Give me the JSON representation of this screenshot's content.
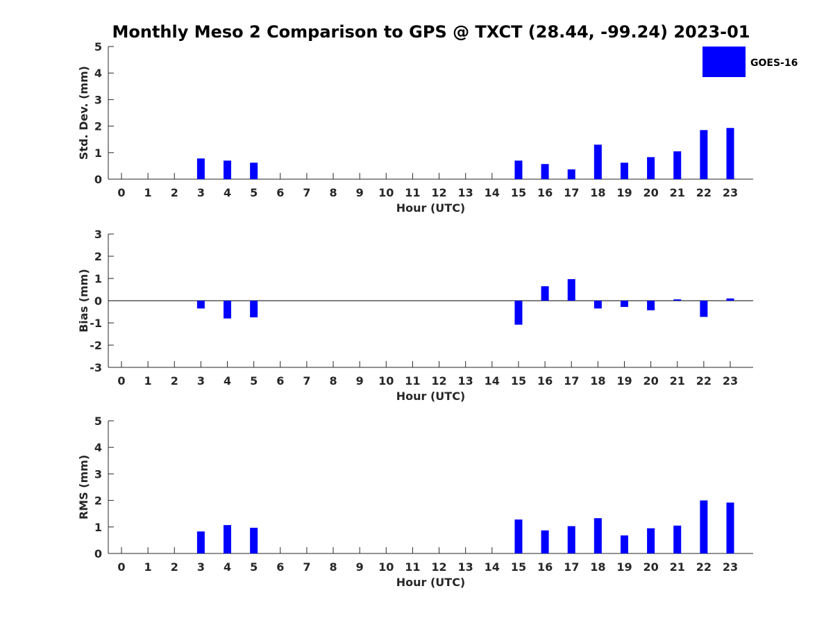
{
  "figure": {
    "title": "Monthly Meso 2 Comparison to GPS @ TXCT (28.44, -99.24) 2023-01",
    "legend_label": "GOES-16",
    "bar_color": "#0000ff"
  },
  "chart_data": [
    {
      "type": "bar",
      "ylabel": "Std. Dev. (mm)",
      "xlabel": "Hour (UTC)",
      "x": [
        0,
        1,
        2,
        3,
        4,
        5,
        6,
        7,
        8,
        9,
        10,
        11,
        12,
        13,
        14,
        15,
        16,
        17,
        18,
        19,
        20,
        21,
        22,
        23
      ],
      "x_tick_labels": [
        "0",
        "1",
        "2",
        "3",
        "4",
        "5",
        "6",
        "7",
        "8",
        "9",
        "10",
        "11",
        "12",
        "13",
        "14",
        "15",
        "16",
        "17",
        "18",
        "19",
        "20",
        "21",
        "22",
        "23"
      ],
      "ylim": [
        0,
        5
      ],
      "y_ticks": [
        0,
        1,
        2,
        3,
        4,
        5
      ],
      "y_tick_labels": [
        "0",
        "1",
        "2",
        "3",
        "4",
        "5"
      ],
      "values": [
        null,
        null,
        null,
        0.78,
        0.7,
        0.62,
        null,
        null,
        null,
        null,
        null,
        null,
        null,
        null,
        null,
        0.7,
        0.57,
        0.37,
        1.3,
        0.62,
        0.83,
        1.05,
        1.85,
        1.93
      ]
    },
    {
      "type": "bar",
      "ylabel": "Bias (mm)",
      "xlabel": "Hour (UTC)",
      "x": [
        0,
        1,
        2,
        3,
        4,
        5,
        6,
        7,
        8,
        9,
        10,
        11,
        12,
        13,
        14,
        15,
        16,
        17,
        18,
        19,
        20,
        21,
        22,
        23
      ],
      "x_tick_labels": [
        "0",
        "1",
        "2",
        "3",
        "4",
        "5",
        "6",
        "7",
        "8",
        "9",
        "10",
        "11",
        "12",
        "13",
        "14",
        "15",
        "16",
        "17",
        "18",
        "19",
        "20",
        "21",
        "22",
        "23"
      ],
      "ylim": [
        -3,
        3
      ],
      "y_ticks": [
        -3,
        -2,
        -1,
        0,
        1,
        2,
        3
      ],
      "y_tick_labels": [
        "-3",
        "-2",
        "-1",
        "0",
        "1",
        "2",
        "3"
      ],
      "zero_line": true,
      "values": [
        null,
        null,
        null,
        -0.35,
        -0.8,
        -0.75,
        null,
        null,
        null,
        null,
        null,
        null,
        null,
        null,
        null,
        -1.08,
        0.65,
        0.97,
        -0.35,
        -0.28,
        -0.43,
        0.06,
        -0.73,
        0.1
      ]
    },
    {
      "type": "bar",
      "ylabel": "RMS (mm)",
      "xlabel": "Hour (UTC)",
      "x": [
        0,
        1,
        2,
        3,
        4,
        5,
        6,
        7,
        8,
        9,
        10,
        11,
        12,
        13,
        14,
        15,
        16,
        17,
        18,
        19,
        20,
        21,
        22,
        23
      ],
      "x_tick_labels": [
        "0",
        "1",
        "2",
        "3",
        "4",
        "5",
        "6",
        "7",
        "8",
        "9",
        "10",
        "11",
        "12",
        "13",
        "14",
        "15",
        "16",
        "17",
        "18",
        "19",
        "20",
        "21",
        "22",
        "23"
      ],
      "ylim": [
        0,
        5
      ],
      "y_ticks": [
        0,
        1,
        2,
        3,
        4,
        5
      ],
      "y_tick_labels": [
        "0",
        "1",
        "2",
        "3",
        "4",
        "5"
      ],
      "values": [
        null,
        null,
        null,
        0.83,
        1.07,
        0.97,
        null,
        null,
        null,
        null,
        null,
        null,
        null,
        null,
        null,
        1.28,
        0.87,
        1.03,
        1.33,
        0.68,
        0.95,
        1.05,
        2.0,
        1.92
      ]
    }
  ]
}
